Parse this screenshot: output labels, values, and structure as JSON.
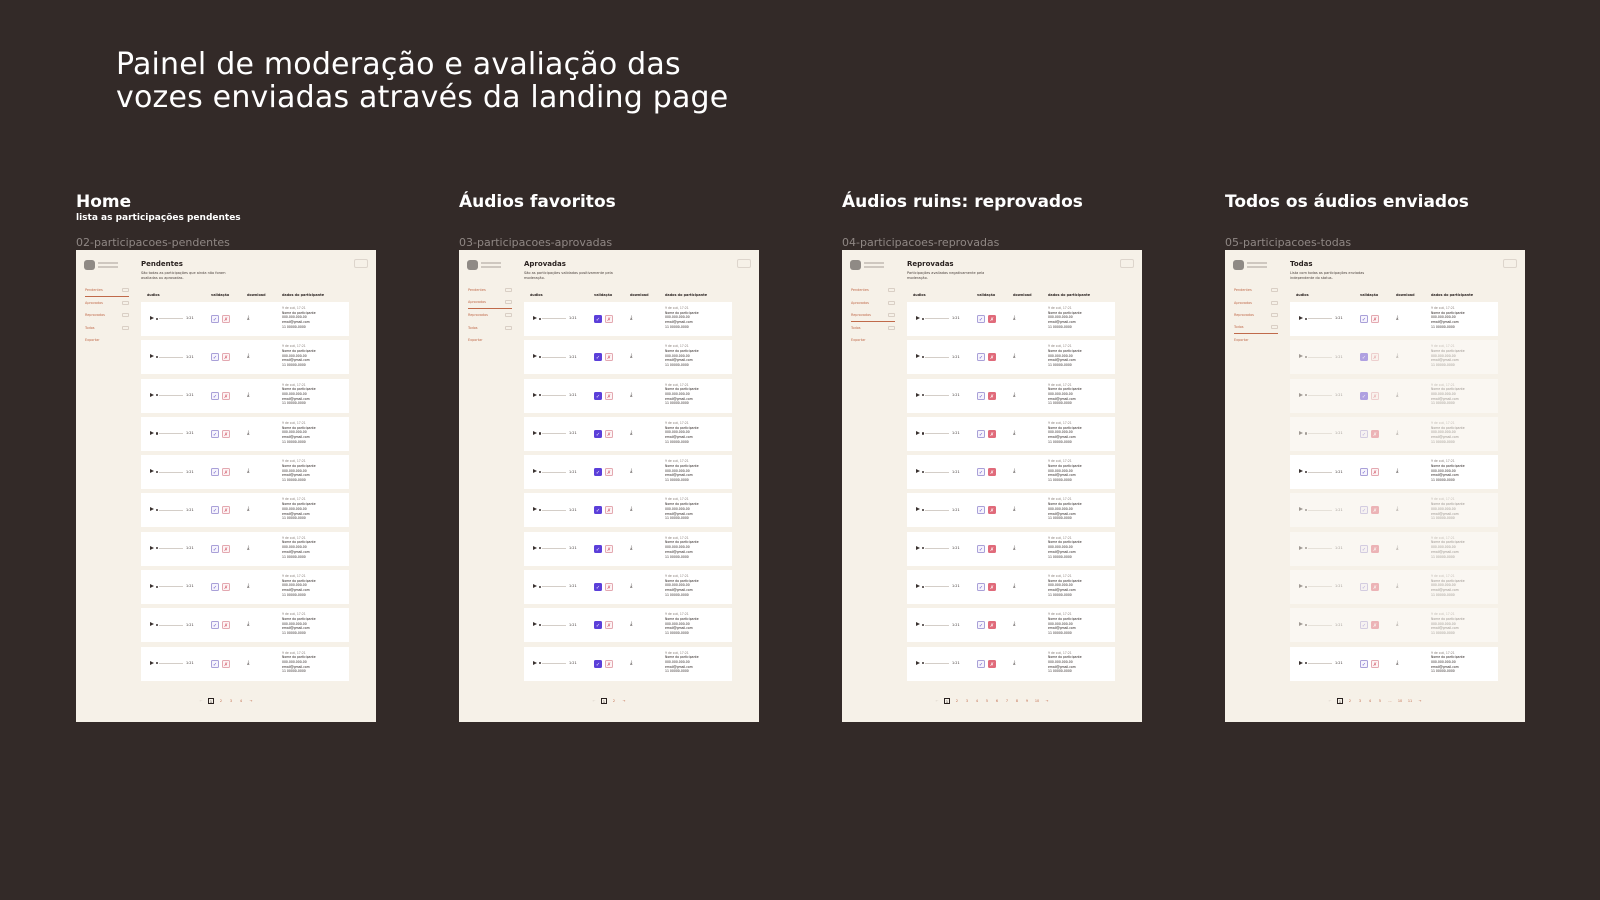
{
  "page_title": "Painel de moderação e avaliação das\nvozes enviadas através da landing page",
  "table_headers": {
    "audio": "áudios",
    "validation": "validação",
    "download": "download",
    "participant": "dados do participante"
  },
  "sidebar_items": [
    "Pendentes",
    "Aprovados",
    "Reprovados",
    "Todos",
    "Exportar"
  ],
  "row_template": {
    "duration": "1:21",
    "date": "9 de out, 17:21",
    "name": "Nome do participante",
    "doc": "000.000.000-00",
    "email": "email@gmail.com",
    "phone": "11 00000-0000"
  },
  "icons": {
    "play": "play-icon",
    "like": "thumbs-up-icon",
    "dislike": "thumbs-down-icon",
    "download": "download-icon"
  },
  "colors": {
    "background": "#332a28",
    "sheet": "#f6f1e8",
    "approve": "#5b3fd9",
    "reject": "#e06a7a",
    "nav": "#c06a4a"
  },
  "columns": [
    {
      "title": "Home",
      "subtitle": "lista as participações pendentes",
      "file": "02-participacoes-pendentes",
      "heading": "Pendentes",
      "description": "São todas as participações que ainda não foram avaliadas ou aprovadas.",
      "active_nav": 0,
      "rows": [
        "p",
        "p",
        "p",
        "p",
        "p",
        "p",
        "p",
        "p",
        "p",
        "p"
      ],
      "pages": [
        "1",
        "2",
        "3",
        "4"
      ]
    },
    {
      "title": "Áudios favoritos",
      "subtitle": "",
      "file": "03-participacoes-aprovadas",
      "heading": "Aprovadas",
      "description": "São as participações validadas positivamente pela moderação.",
      "active_nav": 1,
      "rows": [
        "a",
        "a",
        "a",
        "a",
        "a",
        "a",
        "a",
        "a",
        "a",
        "a"
      ],
      "pages": [
        "1",
        "2"
      ]
    },
    {
      "title": "Áudios ruins: reprovados",
      "subtitle": "",
      "file": "04-participacoes-reprovadas",
      "heading": "Reprovadas",
      "description": "Participações avaliadas negativamente pela moderação.",
      "active_nav": 2,
      "rows": [
        "r",
        "r",
        "r",
        "r",
        "r",
        "r",
        "r",
        "r",
        "r",
        "r"
      ],
      "pages": [
        "1",
        "2",
        "3",
        "4",
        "5",
        "6",
        "7",
        "8",
        "9",
        "10"
      ]
    },
    {
      "title": "Todos os áudios enviados",
      "subtitle": "",
      "file": "05-participacoes-todas",
      "heading": "Todas",
      "description": "Lista com todas as participações enviadas independente do status.",
      "active_nav": 3,
      "rows": [
        "p",
        "a",
        "a",
        "r",
        "p",
        "r",
        "r",
        "r",
        "r",
        "p"
      ],
      "pages": [
        "1",
        "2",
        "3",
        "4",
        "5",
        "...",
        "10",
        "11"
      ]
    }
  ]
}
